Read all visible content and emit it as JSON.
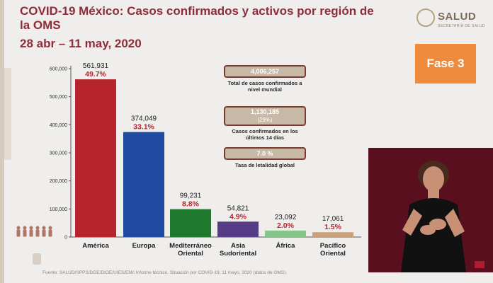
{
  "header": {
    "title": "COVID-19 México: Casos confirmados y activos por región de la OMS",
    "date_range": "28 abr – 11 may, 2020"
  },
  "brand": {
    "name": "SALUD",
    "subtitle": "SECRETARÍA DE SALUD"
  },
  "phase_badge": {
    "label": "Fase 3",
    "color": "#f08a3c"
  },
  "stats": [
    {
      "value": "4,006,257",
      "label": "Total de casos confirmados a nivel mundial"
    },
    {
      "value": "1,130,185",
      "percent": "(29%)",
      "label": "Casos confirmados en los últimos 14 días"
    },
    {
      "value": "7.0 %",
      "label": "Tasa de letalidad global"
    }
  ],
  "footer": {
    "source": "Fuente: SALUD/SPPS/DGE/DIOE/UIES/EMc Informe técnico. Situación por COVID-19, 11 mayo, 2020 (datos de OMS)."
  },
  "chart_data": {
    "type": "bar",
    "categories": [
      "América",
      "Europa",
      "Mediterráneo Oriental",
      "Asia Sudoriental",
      "África",
      "Pacífico Oriental"
    ],
    "values": [
      561931,
      374049,
      99231,
      54821,
      23092,
      17061
    ],
    "value_labels": [
      "561,931",
      "374,049",
      "99,231",
      "54,821",
      "23,092",
      "17,061"
    ],
    "percent_labels": [
      "49.7%",
      "33.1%",
      "8.8%",
      "4.9%",
      "2.0%",
      "1.5%"
    ],
    "colors": [
      "#b8242e",
      "#1f4ca1",
      "#1f7a2e",
      "#563b86",
      "#86c68b",
      "#c9a07a"
    ],
    "ylim": [
      0,
      600000
    ],
    "yticks": [
      "0",
      "100,000",
      "200,000",
      "300,000",
      "400,000",
      "500,000",
      "600,000"
    ],
    "grid": false,
    "label_color": "#b8242e"
  }
}
